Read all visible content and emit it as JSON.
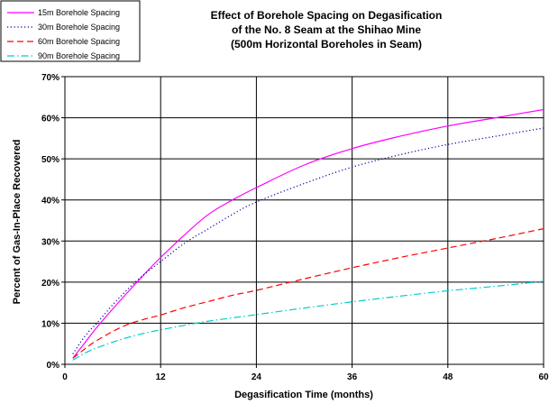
{
  "chart_data": {
    "type": "line",
    "title_lines": [
      "Effect of Borehole Spacing on Degasification",
      "of the No. 8 Seam at the Shihao Mine",
      "(500m Horizontal Boreholes in Seam)"
    ],
    "xlabel": "Degasification Time (months)",
    "ylabel": "Percent of Gas-In-Place Recovered",
    "x_ticks": [
      0,
      12,
      24,
      36,
      48,
      60
    ],
    "x_tick_labels": [
      "0",
      "12",
      "24",
      "36",
      "48",
      "60"
    ],
    "y_ticks": [
      0,
      10,
      20,
      30,
      40,
      50,
      60,
      70
    ],
    "y_tick_labels": [
      "0%",
      "10%",
      "20%",
      "30%",
      "40%",
      "50%",
      "60%",
      "70%"
    ],
    "xlim": [
      0,
      60
    ],
    "ylim": [
      0,
      70
    ],
    "grid": true,
    "legend_position": "top-left",
    "x": [
      1,
      2,
      3,
      4,
      6,
      8,
      10,
      12,
      15,
      18,
      21,
      24,
      30,
      36,
      42,
      48,
      54,
      60
    ],
    "series": [
      {
        "name": "15m Borehole Spacing",
        "color": "#ff00ff",
        "dash": "solid",
        "values": [
          1.5,
          4,
          6.5,
          9,
          13.5,
          17.8,
          22,
          26,
          31.5,
          36.5,
          40,
          43,
          48.5,
          52.5,
          55.5,
          58,
          60,
          62
        ]
      },
      {
        "name": "30m Borehole Spacing",
        "color": "#00009a",
        "dash": "dotted",
        "values": [
          2.5,
          5.5,
          8,
          10,
          14.5,
          18.5,
          22,
          25,
          29.5,
          33,
          36.5,
          39.5,
          44,
          48,
          51,
          53.5,
          55.5,
          57.5
        ]
      },
      {
        "name": "60m Borehole Spacing",
        "color": "#ff0000",
        "dash": "dashed",
        "values": [
          1.5,
          3,
          4.5,
          5.8,
          8,
          9.8,
          11,
          12,
          13.8,
          15.3,
          16.8,
          18,
          20.8,
          23.5,
          26,
          28.3,
          30.6,
          33
        ]
      },
      {
        "name": "90m Borehole Spacing",
        "color": "#00cccc",
        "dash": "dashdot",
        "values": [
          1,
          2.2,
          3.2,
          4,
          5.4,
          6.6,
          7.6,
          8.4,
          9.5,
          10.5,
          11.3,
          12.1,
          13.7,
          15.2,
          16.6,
          17.9,
          19,
          20.2
        ]
      }
    ]
  }
}
